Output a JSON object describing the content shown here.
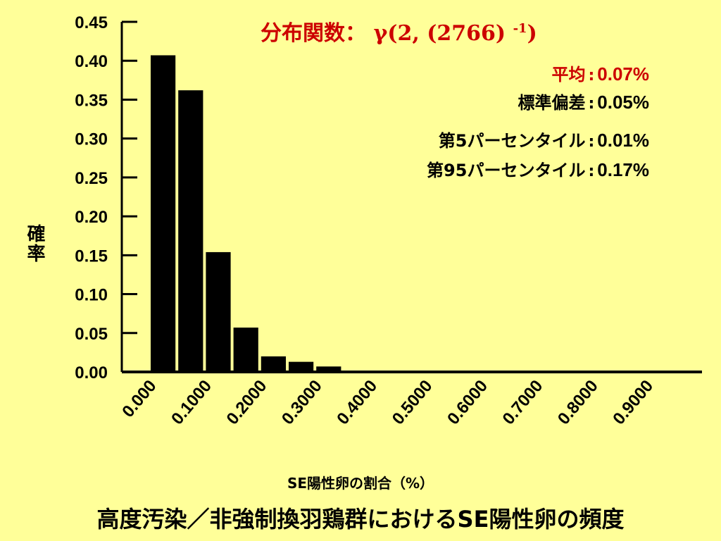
{
  "chart_data": {
    "type": "bar",
    "title": "分布関数：",
    "formula": {
      "base": "γ(2, (2766)",
      "exponent": "-1",
      "close": ")"
    },
    "ylabel": "確率",
    "xlabel": "SE陽性卵の割合（%）",
    "ylim": [
      0,
      0.45
    ],
    "y_ticks": [
      "0.00",
      "0.05",
      "0.10",
      "0.15",
      "0.20",
      "0.25",
      "0.30",
      "0.35",
      "0.40",
      "0.45"
    ],
    "x_ticks": [
      "0.000",
      "0.1000",
      "0.2000",
      "0.3000",
      "0.4000",
      "0.5000",
      "0.6000",
      "0.7000",
      "0.8000",
      "0.9000"
    ],
    "x_range": [
      0,
      1.0
    ],
    "bin_width": 0.05,
    "bins": [
      {
        "x": 0.025,
        "value": 0.407
      },
      {
        "x": 0.075,
        "value": 0.362
      },
      {
        "x": 0.125,
        "value": 0.154
      },
      {
        "x": 0.175,
        "value": 0.057
      },
      {
        "x": 0.225,
        "value": 0.02
      },
      {
        "x": 0.275,
        "value": 0.013
      },
      {
        "x": 0.325,
        "value": 0.007
      }
    ],
    "bar_color": "#000000"
  },
  "stats": {
    "mean": {
      "label": "平均",
      "value": "0.07%"
    },
    "sd": {
      "label": "標準偏差",
      "value": "0.05%"
    },
    "p5": {
      "label": "第5パーセンタイル",
      "value": "0.01%"
    },
    "p95": {
      "label": "第95パーセンタイル",
      "value": "0.17%"
    }
  },
  "footer": "高度汚染／非強制換羽鶏群におけるSE陽性卵の頻度",
  "colors": {
    "background": "#ffff99",
    "accent": "#cc0000",
    "text": "#000000"
  }
}
